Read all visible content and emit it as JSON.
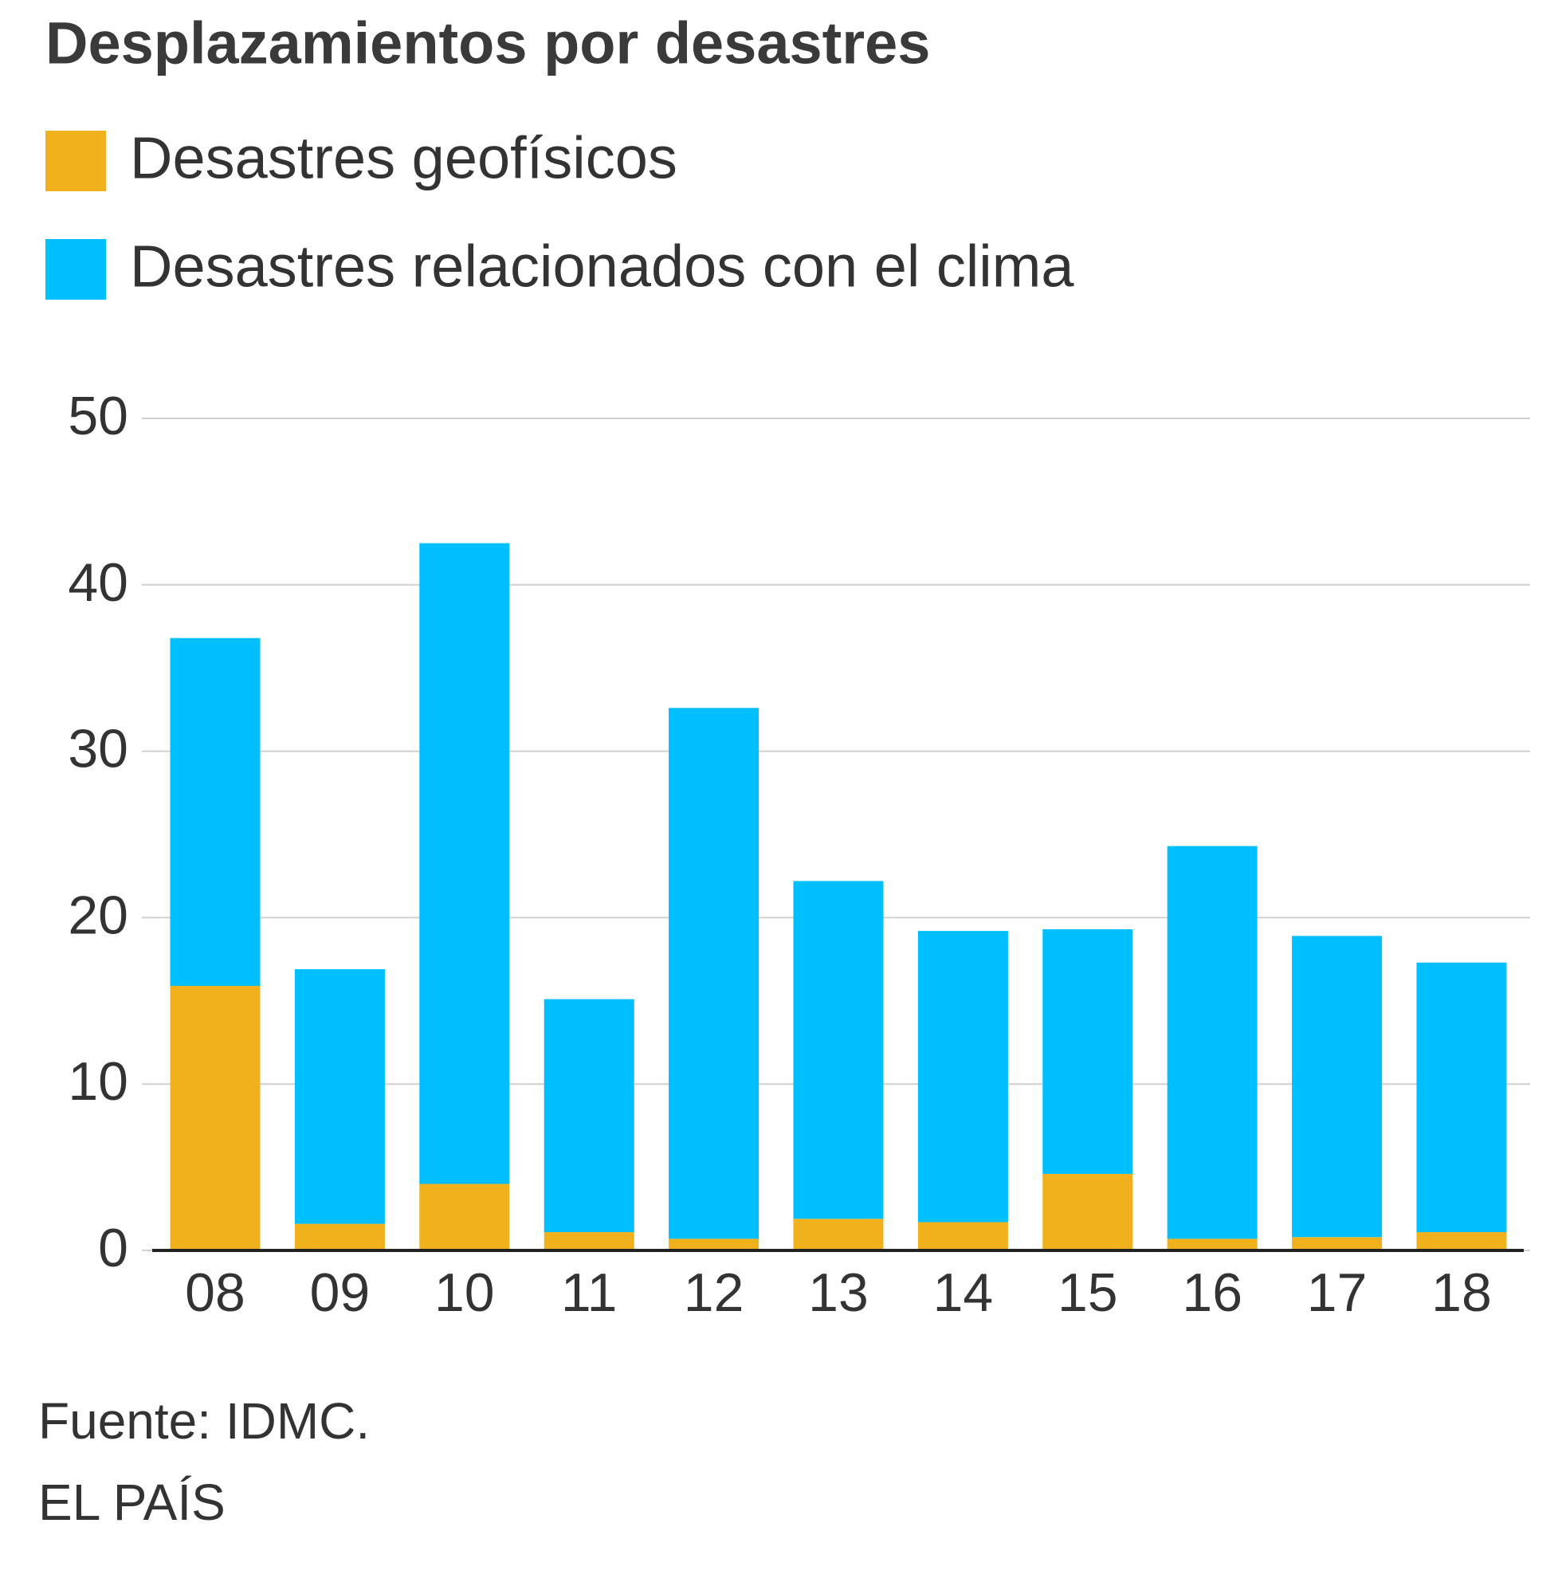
{
  "chart_data": {
    "type": "stacked-bar",
    "title": "Desplazamientos por desastres",
    "categories": [
      "08",
      "09",
      "10",
      "11",
      "12",
      "13",
      "14",
      "15",
      "16",
      "17",
      "18"
    ],
    "series": [
      {
        "name": "Desastres geofísicos",
        "color": "#f0b11c",
        "values": [
          15.9,
          1.6,
          4.0,
          1.1,
          0.7,
          1.9,
          1.7,
          4.6,
          0.7,
          0.8,
          1.1
        ]
      },
      {
        "name": "Desastres relacionados con el clima",
        "color": "#00bfff",
        "values": [
          20.9,
          15.3,
          38.5,
          14.0,
          31.9,
          20.3,
          17.5,
          14.7,
          23.6,
          18.1,
          16.2
        ]
      }
    ],
    "ylim": [
      0,
      50
    ],
    "yticks": [
      0,
      10,
      20,
      30,
      40,
      50
    ],
    "grid": true,
    "source": "Fuente: IDMC.",
    "credit": "EL PAÍS"
  }
}
